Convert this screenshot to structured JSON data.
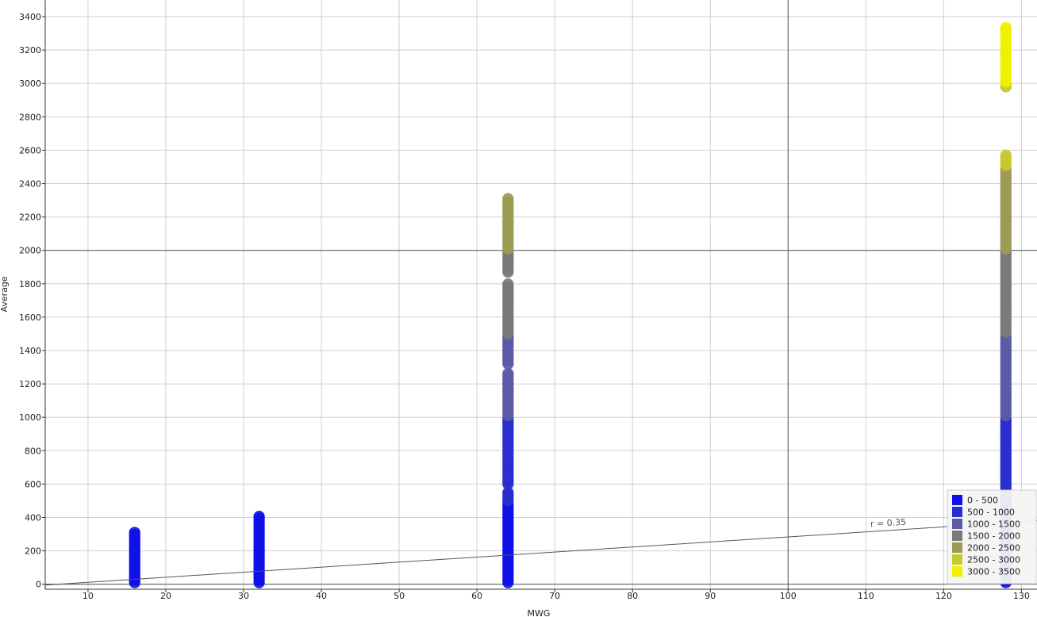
{
  "chart_data": {
    "type": "scatter",
    "xlabel": "MWG",
    "ylabel": "Average",
    "xlim": [
      4.5,
      132
    ],
    "ylim": [
      -30,
      3500
    ],
    "x_ticks": [
      10,
      20,
      30,
      40,
      50,
      60,
      70,
      80,
      90,
      100,
      110,
      120,
      130
    ],
    "y_ticks": [
      0,
      200,
      400,
      600,
      800,
      1000,
      1200,
      1400,
      1600,
      1800,
      2000,
      2200,
      2400,
      2600,
      2800,
      3000,
      3200,
      3400
    ],
    "grid": true,
    "reference_lines": {
      "x": 100,
      "y": 2000
    },
    "legend_position": "bottom-right",
    "legend": [
      {
        "label": "0 - 500",
        "color": "#1010e8"
      },
      {
        "label": "500 - 1000",
        "color": "#2a2ed0"
      },
      {
        "label": "1000 - 1500",
        "color": "#5a5aa6"
      },
      {
        "label": "1500 - 2000",
        "color": "#7a7a7a"
      },
      {
        "label": "2000 - 2500",
        "color": "#9c9c55"
      },
      {
        "label": "2500 - 3000",
        "color": "#c8c830"
      },
      {
        "label": "3000 - 3500",
        "color": "#f0f000"
      }
    ],
    "trendline": {
      "label": "r = 0.35",
      "x": [
        4.5,
        132
      ],
      "y": [
        -5,
        380
      ]
    },
    "series": [
      {
        "x": 16,
        "y_min": 10,
        "y_max": 310
      },
      {
        "x": 32,
        "y_min": 10,
        "y_max": 410
      },
      {
        "x": 64,
        "y_min": 10,
        "y_max": 560
      },
      {
        "x": 64,
        "y_min": 600,
        "y_max": 1000
      },
      {
        "x": 64,
        "y_min": 1010,
        "y_max": 1270
      },
      {
        "x": 64,
        "y_min": 1320,
        "y_max": 1500
      },
      {
        "x": 64,
        "y_min": 1510,
        "y_max": 1800
      },
      {
        "x": 64,
        "y_min": 1870,
        "y_max": 2000
      },
      {
        "x": 64,
        "y_min": 2010,
        "y_max": 2310
      },
      {
        "x": 128,
        "y_min": 10,
        "y_max": 500
      },
      {
        "x": 128,
        "y_min": 510,
        "y_max": 1000
      },
      {
        "x": 128,
        "y_min": 1010,
        "y_max": 1500
      },
      {
        "x": 128,
        "y_min": 1510,
        "y_max": 2000
      },
      {
        "x": 128,
        "y_min": 2010,
        "y_max": 2500
      },
      {
        "x": 128,
        "y_min": 2510,
        "y_max": 2580
      },
      {
        "x": 128,
        "y_min": 2980,
        "y_max": 3000
      },
      {
        "x": 128,
        "y_min": 3010,
        "y_max": 3340
      }
    ]
  }
}
